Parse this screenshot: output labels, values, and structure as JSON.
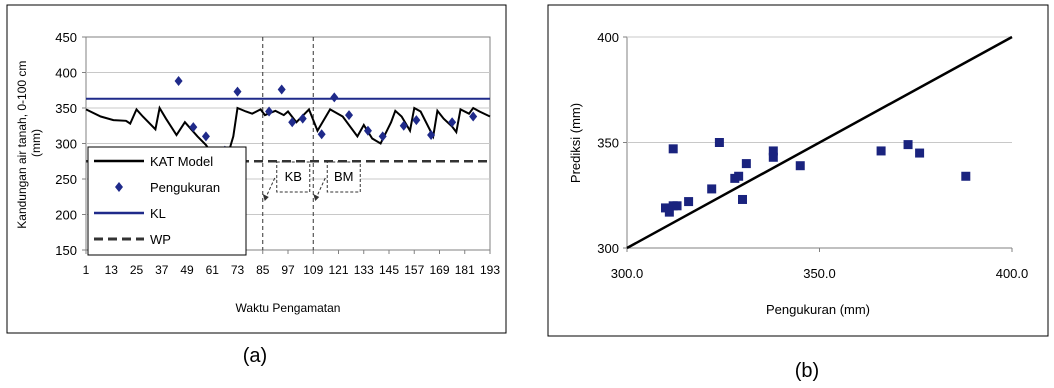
{
  "panels": {
    "a": {
      "caption": "(a)"
    },
    "b": {
      "caption": "(b)"
    }
  },
  "colors": {
    "model": "#000000",
    "measure": "#1f2a8a",
    "kl": "#1f2a8a",
    "wp": "#333333",
    "scatter": "#1a237e",
    "grid": "#c8c8c8"
  },
  "chart_data": [
    {
      "type": "line",
      "title": "",
      "xlabel": "Waktu Pengamatan",
      "ylabel": "Kandungan air tanah, 0-100 cm (mm)",
      "ylim": [
        150,
        450
      ],
      "yticks": [
        150,
        200,
        250,
        300,
        350,
        400,
        450
      ],
      "xlim": [
        1,
        193
      ],
      "xticks": [
        1,
        13,
        25,
        37,
        49,
        61,
        73,
        85,
        97,
        109,
        121,
        133,
        145,
        157,
        169,
        181,
        193
      ],
      "grid": "horizontal",
      "legend": {
        "placement": "bottom-left",
        "entries": [
          "KAT Model",
          "Pengukuran",
          "KL",
          "WP"
        ]
      },
      "annotations": [
        {
          "text": "KB",
          "x_day": 85
        },
        {
          "text": "BM",
          "x_day": 109
        }
      ],
      "vertical_markers": [
        85,
        109
      ],
      "series": [
        {
          "name": "KAT Model",
          "style": "line",
          "x": [
            1,
            8,
            14,
            20,
            22,
            25,
            28,
            34,
            36,
            39,
            44,
            48,
            54,
            58,
            61,
            64,
            67,
            69,
            71,
            73,
            77,
            80,
            84,
            86,
            91,
            95,
            97,
            101,
            107,
            111,
            117,
            123,
            130,
            133,
            137,
            141,
            146,
            148,
            151,
            155,
            157,
            160,
            166,
            168,
            171,
            175,
            177,
            179,
            183,
            185,
            188,
            193
          ],
          "y": [
            348,
            338,
            333,
            332,
            328,
            348,
            338,
            320,
            350,
            335,
            312,
            330,
            310,
            298,
            285,
            282,
            280,
            290,
            310,
            350,
            345,
            342,
            348,
            340,
            346,
            340,
            345,
            330,
            348,
            318,
            348,
            338,
            310,
            326,
            307,
            300,
            330,
            346,
            338,
            318,
            350,
            345,
            310,
            346,
            335,
            324,
            316,
            348,
            342,
            350,
            345,
            338
          ]
        },
        {
          "name": "Pengukuran",
          "style": "marker",
          "x": [
            45,
            52,
            58,
            67,
            73,
            88,
            94,
            99,
            104,
            119,
            113,
            126,
            135,
            142,
            152,
            158,
            165,
            175,
            185
          ],
          "y": [
            388,
            323,
            310,
            290,
            373,
            345,
            376,
            330,
            335,
            365,
            313,
            340,
            318,
            310,
            325,
            333,
            312,
            330,
            338
          ]
        },
        {
          "name": "KL",
          "style": "hline",
          "y": 363
        },
        {
          "name": "WP",
          "style": "dashed-hline",
          "y": 275
        }
      ]
    },
    {
      "type": "scatter",
      "title": "",
      "xlabel": "Pengukuran (mm)",
      "ylabel": "Prediksi (mm)",
      "xlim": [
        300,
        400
      ],
      "ylim": [
        300,
        400
      ],
      "xticks": [
        "300.0",
        "350.0",
        "400.0"
      ],
      "yticks": [
        "300",
        "350",
        "400"
      ],
      "grid": "horizontal",
      "series": [
        {
          "style": "marker",
          "x": [
            310,
            311,
            312,
            312,
            313,
            316,
            322,
            324,
            328,
            329,
            330,
            331,
            338,
            338,
            345,
            366,
            373,
            376,
            388
          ],
          "y": [
            319,
            317,
            320,
            347,
            320,
            322,
            328,
            350,
            333,
            334,
            323,
            340,
            346,
            343,
            339,
            346,
            349,
            345,
            334
          ]
        },
        {
          "style": "line",
          "x": [
            300,
            400
          ],
          "y": [
            300,
            400
          ]
        }
      ]
    }
  ]
}
